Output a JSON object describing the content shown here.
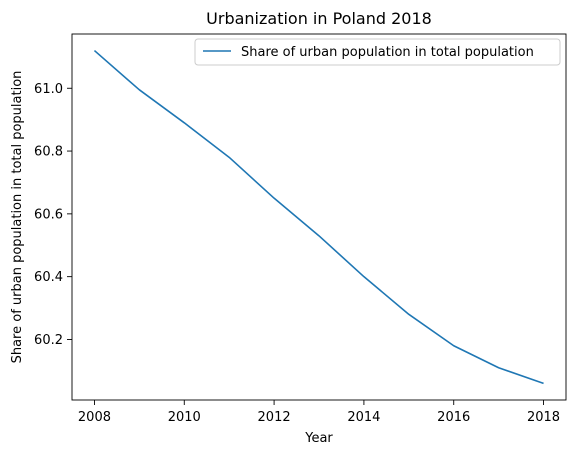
{
  "chart_data": {
    "type": "line",
    "title": "Urbanization in Poland 2018",
    "xlabel": "Year",
    "ylabel": "Share of urban population in total population",
    "x": [
      2008,
      2009,
      2010,
      2011,
      2012,
      2013,
      2014,
      2015,
      2016,
      2017,
      2018
    ],
    "series": [
      {
        "name": "Share of urban population in total population",
        "color": "#1f77b4",
        "values": [
          61.12,
          60.995,
          60.89,
          60.78,
          60.65,
          60.53,
          60.4,
          60.28,
          60.18,
          60.11,
          60.06
        ]
      }
    ],
    "xlim": [
      2007.5,
      2018.5
    ],
    "ylim": [
      60.0072,
      61.1728
    ],
    "xticks": [
      2008,
      2010,
      2012,
      2014,
      2016,
      2018
    ],
    "xtick_labels": [
      "2008",
      "2010",
      "2012",
      "2014",
      "2016",
      "2018"
    ],
    "yticks": [
      60.2,
      60.4,
      60.6,
      60.8,
      61.0
    ],
    "ytick_labels": [
      "60.2",
      "60.4",
      "60.6",
      "60.8",
      "61.0"
    ],
    "grid": false,
    "legend_position": "top-right"
  }
}
